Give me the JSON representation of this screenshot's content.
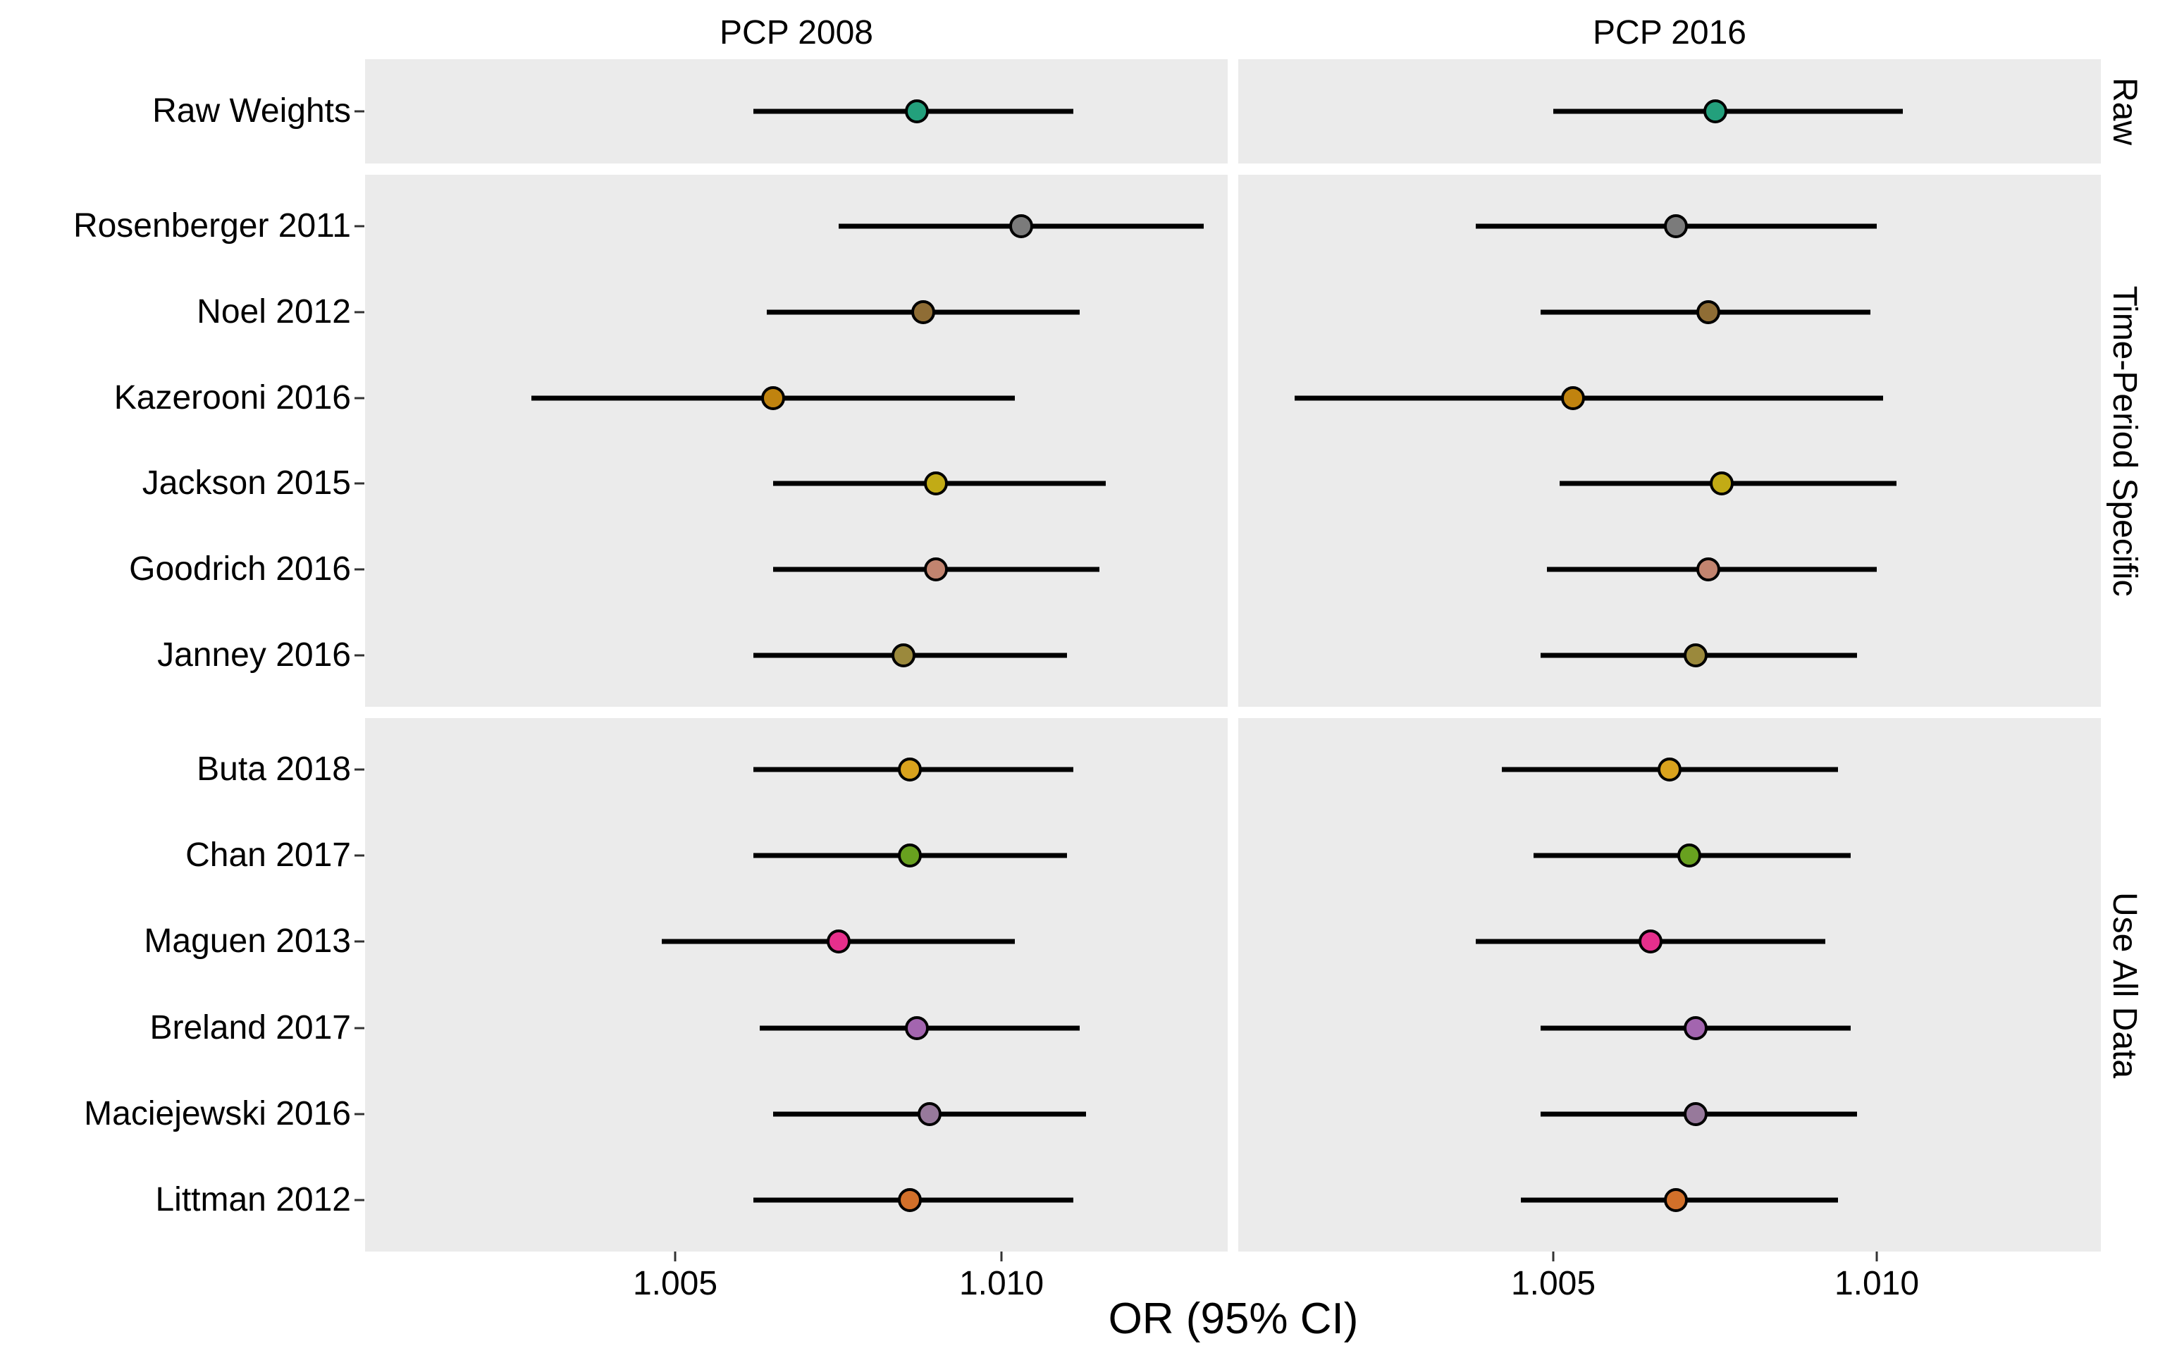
{
  "figure": {
    "panel_titles": [
      "PCP 2008",
      "PCP 2016"
    ],
    "facet_labels": [
      "Raw",
      "Time-Period Specific",
      "Use All Data"
    ],
    "x_axis_title": "OR (95% CI)",
    "x_tick_labels": [
      "1.005",
      "1.010"
    ]
  },
  "chart_data": {
    "type": "scatter",
    "subtype": "forest-plot",
    "title": "",
    "xlabel": "OR (95% CI)",
    "ylabel": "",
    "panels": [
      "PCP 2008",
      "PCP 2016"
    ],
    "x_ticks": [
      1.005,
      1.01
    ],
    "x_tick_labels": [
      "1.005",
      "1.010"
    ],
    "x_range": [
      1.0002,
      1.0135
    ],
    "grid": false,
    "panel_background": "#ebebeb",
    "error_bar_color": "#000000",
    "facets": [
      {
        "label": "Raw",
        "rows": [
          {
            "label": "Raw Weights",
            "color": "#23a07c",
            "pcp2008": {
              "or": 1.0087,
              "lo": 1.0062,
              "hi": 1.0111
            },
            "pcp2016": {
              "or": 1.0075,
              "lo": 1.005,
              "hi": 1.0104
            }
          }
        ]
      },
      {
        "label": "Time-Period Specific",
        "rows": [
          {
            "label": "Rosenberger 2011",
            "color": "#7b7b7b",
            "pcp2008": {
              "or": 1.0103,
              "lo": 1.0075,
              "hi": 1.0131
            },
            "pcp2016": {
              "or": 1.0069,
              "lo": 1.0038,
              "hi": 1.01
            }
          },
          {
            "label": "Noel 2012",
            "color": "#8f6d35",
            "pcp2008": {
              "or": 1.0088,
              "lo": 1.0064,
              "hi": 1.0112
            },
            "pcp2016": {
              "or": 1.0074,
              "lo": 1.0048,
              "hi": 1.0099
            }
          },
          {
            "label": "Kazerooni 2016",
            "color": "#c0830f",
            "pcp2008": {
              "or": 1.0065,
              "lo": 1.0028,
              "hi": 1.0102
            },
            "pcp2016": {
              "or": 1.0053,
              "lo": 1.001,
              "hi": 1.0101
            }
          },
          {
            "label": "Jackson 2015",
            "color": "#c2ab15",
            "pcp2008": {
              "or": 1.009,
              "lo": 1.0065,
              "hi": 1.0116
            },
            "pcp2016": {
              "or": 1.0076,
              "lo": 1.0051,
              "hi": 1.0103
            }
          },
          {
            "label": "Goodrich 2016",
            "color": "#c2846f",
            "pcp2008": {
              "or": 1.009,
              "lo": 1.0065,
              "hi": 1.0115
            },
            "pcp2016": {
              "or": 1.0074,
              "lo": 1.0049,
              "hi": 1.01
            }
          },
          {
            "label": "Janney 2016",
            "color": "#9b893c",
            "pcp2008": {
              "or": 1.0085,
              "lo": 1.0062,
              "hi": 1.011
            },
            "pcp2016": {
              "or": 1.0072,
              "lo": 1.0048,
              "hi": 1.0097
            }
          }
        ]
      },
      {
        "label": "Use All Data",
        "rows": [
          {
            "label": "Buta 2018",
            "color": "#d9a21d",
            "pcp2008": {
              "or": 1.0086,
              "lo": 1.0062,
              "hi": 1.0111
            },
            "pcp2016": {
              "or": 1.0068,
              "lo": 1.0042,
              "hi": 1.0094
            }
          },
          {
            "label": "Chan 2017",
            "color": "#68a11f",
            "pcp2008": {
              "or": 1.0086,
              "lo": 1.0062,
              "hi": 1.011
            },
            "pcp2016": {
              "or": 1.0071,
              "lo": 1.0047,
              "hi": 1.0096
            }
          },
          {
            "label": "Maguen 2013",
            "color": "#e62f8c",
            "pcp2008": {
              "or": 1.0075,
              "lo": 1.0048,
              "hi": 1.0102
            },
            "pcp2016": {
              "or": 1.0065,
              "lo": 1.0038,
              "hi": 1.0092
            }
          },
          {
            "label": "Breland 2017",
            "color": "#a365af",
            "pcp2008": {
              "or": 1.0087,
              "lo": 1.0063,
              "hi": 1.0112
            },
            "pcp2016": {
              "or": 1.0072,
              "lo": 1.0048,
              "hi": 1.0096
            }
          },
          {
            "label": "Maciejewski 2016",
            "color": "#97799b",
            "pcp2008": {
              "or": 1.0089,
              "lo": 1.0065,
              "hi": 1.0113
            },
            "pcp2016": {
              "or": 1.0072,
              "lo": 1.0048,
              "hi": 1.0097
            }
          },
          {
            "label": "Littman 2012",
            "color": "#d2702a",
            "pcp2008": {
              "or": 1.0086,
              "lo": 1.0062,
              "hi": 1.0111
            },
            "pcp2016": {
              "or": 1.0069,
              "lo": 1.0045,
              "hi": 1.0094
            }
          }
        ]
      }
    ]
  }
}
